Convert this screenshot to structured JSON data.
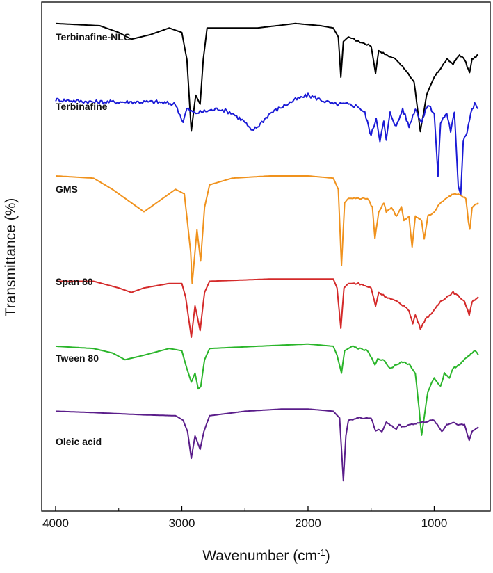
{
  "chart_data": {
    "type": "line",
    "title": "",
    "xlabel": "Wavenumber (cm",
    "xlabel_sup": "-1",
    "xlabel_close": ")",
    "ylabel": "Transmittance (%)",
    "xlim": [
      4000,
      650
    ],
    "x_reversed": true,
    "xticks": [
      4000,
      3000,
      2000,
      1000
    ],
    "xtick_labels": [
      "4000",
      "3000",
      "2000",
      "1000"
    ],
    "y_unit": "stacked transmittance spectra (arbitrary, offset)",
    "series": [
      {
        "name": "Terbinafine-NLC",
        "color": "#000000",
        "baseline": 95,
        "points": [
          [
            4000,
            96
          ],
          [
            3650,
            95.5
          ],
          [
            3500,
            94
          ],
          [
            3400,
            92.5
          ],
          [
            3250,
            93.5
          ],
          [
            3100,
            95
          ],
          [
            3000,
            94
          ],
          [
            2960,
            88
          ],
          [
            2925,
            72
          ],
          [
            2890,
            80
          ],
          [
            2855,
            78
          ],
          [
            2830,
            88
          ],
          [
            2800,
            95
          ],
          [
            2400,
            95
          ],
          [
            2100,
            96
          ],
          [
            1900,
            95.5
          ],
          [
            1800,
            95
          ],
          [
            1760,
            93
          ],
          [
            1740,
            84
          ],
          [
            1720,
            92
          ],
          [
            1680,
            93
          ],
          [
            1600,
            92
          ],
          [
            1500,
            91
          ],
          [
            1465,
            85
          ],
          [
            1440,
            90
          ],
          [
            1380,
            89
          ],
          [
            1300,
            88
          ],
          [
            1240,
            86
          ],
          [
            1160,
            83
          ],
          [
            1110,
            72
          ],
          [
            1060,
            80
          ],
          [
            1000,
            84
          ],
          [
            950,
            86
          ],
          [
            900,
            88
          ],
          [
            850,
            87
          ],
          [
            800,
            89
          ],
          [
            760,
            88
          ],
          [
            720,
            85
          ],
          [
            700,
            88
          ],
          [
            650,
            89
          ]
        ]
      },
      {
        "name": "Terbinafine",
        "color": "#1a1ad6",
        "baseline": 79,
        "points": [
          [
            4000,
            79
          ],
          [
            3700,
            78.5
          ],
          [
            3200,
            78.5
          ],
          [
            3050,
            78
          ],
          [
            2990,
            74
          ],
          [
            2960,
            77
          ],
          [
            2900,
            76
          ],
          [
            2700,
            77
          ],
          [
            2600,
            76
          ],
          [
            2500,
            74
          ],
          [
            2450,
            72
          ],
          [
            2400,
            73
          ],
          [
            2300,
            76
          ],
          [
            2100,
            79
          ],
          [
            2000,
            80
          ],
          [
            1900,
            79
          ],
          [
            1800,
            78
          ],
          [
            1700,
            78
          ],
          [
            1600,
            77.5
          ],
          [
            1550,
            76
          ],
          [
            1500,
            71
          ],
          [
            1460,
            75
          ],
          [
            1430,
            70
          ],
          [
            1400,
            74
          ],
          [
            1380,
            70
          ],
          [
            1350,
            76
          ],
          [
            1300,
            73
          ],
          [
            1250,
            77
          ],
          [
            1200,
            73
          ],
          [
            1150,
            77
          ],
          [
            1100,
            74
          ],
          [
            1050,
            78
          ],
          [
            1000,
            76
          ],
          [
            970,
            62
          ],
          [
            950,
            74
          ],
          [
            900,
            76
          ],
          [
            870,
            72
          ],
          [
            840,
            76
          ],
          [
            810,
            60
          ],
          [
            790,
            58
          ],
          [
            770,
            70
          ],
          [
            740,
            72
          ],
          [
            710,
            76
          ],
          [
            680,
            78
          ],
          [
            650,
            77
          ]
        ]
      },
      {
        "name": "GMS",
        "color": "#f0921d",
        "baseline": 62,
        "points": [
          [
            4000,
            62
          ],
          [
            3700,
            61.5
          ],
          [
            3550,
            59
          ],
          [
            3400,
            56
          ],
          [
            3300,
            54
          ],
          [
            3200,
            56
          ],
          [
            3050,
            59
          ],
          [
            2980,
            58
          ],
          [
            2930,
            45
          ],
          [
            2918,
            38
          ],
          [
            2880,
            50
          ],
          [
            2851,
            43
          ],
          [
            2820,
            55
          ],
          [
            2780,
            60
          ],
          [
            2600,
            61.5
          ],
          [
            2300,
            62
          ],
          [
            2000,
            62
          ],
          [
            1800,
            61.5
          ],
          [
            1760,
            59
          ],
          [
            1735,
            42
          ],
          [
            1710,
            56
          ],
          [
            1680,
            57
          ],
          [
            1600,
            57
          ],
          [
            1530,
            57
          ],
          [
            1490,
            55
          ],
          [
            1470,
            48
          ],
          [
            1440,
            54
          ],
          [
            1400,
            56
          ],
          [
            1380,
            54
          ],
          [
            1340,
            55
          ],
          [
            1300,
            53
          ],
          [
            1260,
            55
          ],
          [
            1240,
            52
          ],
          [
            1200,
            53
          ],
          [
            1175,
            46
          ],
          [
            1150,
            53
          ],
          [
            1100,
            52
          ],
          [
            1080,
            48
          ],
          [
            1050,
            53
          ],
          [
            1000,
            54
          ],
          [
            950,
            56
          ],
          [
            900,
            57
          ],
          [
            850,
            58
          ],
          [
            800,
            58
          ],
          [
            750,
            57
          ],
          [
            730,
            52
          ],
          [
            718,
            50
          ],
          [
            700,
            55
          ],
          [
            650,
            56
          ]
        ]
      },
      {
        "name": "Span 80",
        "color": "#d42a2a",
        "baseline": 38.5,
        "points": [
          [
            4000,
            38.5
          ],
          [
            3700,
            38.5
          ],
          [
            3500,
            37
          ],
          [
            3400,
            36
          ],
          [
            3300,
            37
          ],
          [
            3100,
            38
          ],
          [
            3000,
            38
          ],
          [
            2970,
            35
          ],
          [
            2925,
            26
          ],
          [
            2895,
            33
          ],
          [
            2855,
            27.5
          ],
          [
            2820,
            36
          ],
          [
            2780,
            38.5
          ],
          [
            2300,
            39
          ],
          [
            2000,
            39
          ],
          [
            1800,
            39
          ],
          [
            1770,
            37
          ],
          [
            1740,
            28
          ],
          [
            1715,
            37
          ],
          [
            1680,
            38
          ],
          [
            1600,
            38
          ],
          [
            1500,
            37
          ],
          [
            1465,
            33
          ],
          [
            1440,
            36
          ],
          [
            1380,
            35
          ],
          [
            1300,
            34
          ],
          [
            1240,
            33
          ],
          [
            1200,
            32
          ],
          [
            1170,
            29
          ],
          [
            1150,
            31
          ],
          [
            1110,
            28
          ],
          [
            1070,
            30
          ],
          [
            1000,
            32
          ],
          [
            950,
            34
          ],
          [
            900,
            35
          ],
          [
            850,
            36
          ],
          [
            800,
            35
          ],
          [
            760,
            34
          ],
          [
            723,
            31
          ],
          [
            700,
            34
          ],
          [
            650,
            35
          ]
        ]
      },
      {
        "name": "Tween 80",
        "color": "#2ab52a",
        "baseline": 24,
        "points": [
          [
            4000,
            24
          ],
          [
            3700,
            23.5
          ],
          [
            3550,
            22.5
          ],
          [
            3450,
            21
          ],
          [
            3300,
            22
          ],
          [
            3100,
            23.5
          ],
          [
            3000,
            23
          ],
          [
            2960,
            19
          ],
          [
            2925,
            16
          ],
          [
            2895,
            18
          ],
          [
            2870,
            14.5
          ],
          [
            2850,
            15
          ],
          [
            2820,
            21
          ],
          [
            2780,
            23.5
          ],
          [
            2400,
            24
          ],
          [
            2000,
            24.5
          ],
          [
            1800,
            24
          ],
          [
            1770,
            22
          ],
          [
            1735,
            18
          ],
          [
            1710,
            23
          ],
          [
            1650,
            24
          ],
          [
            1600,
            23.5
          ],
          [
            1530,
            23
          ],
          [
            1470,
            20
          ],
          [
            1450,
            21
          ],
          [
            1400,
            21
          ],
          [
            1350,
            19
          ],
          [
            1300,
            20
          ],
          [
            1250,
            20.5
          ],
          [
            1200,
            20
          ],
          [
            1150,
            18
          ],
          [
            1120,
            10
          ],
          [
            1100,
            4
          ],
          [
            1080,
            8
          ],
          [
            1050,
            14
          ],
          [
            1000,
            17
          ],
          [
            950,
            15
          ],
          [
            920,
            18
          ],
          [
            880,
            17
          ],
          [
            850,
            19
          ],
          [
            800,
            20
          ],
          [
            760,
            21
          ],
          [
            720,
            22
          ],
          [
            680,
            23
          ],
          [
            650,
            22
          ]
        ]
      },
      {
        "name": "Oleic acid",
        "color": "#5a1d8a",
        "baseline": 9.5,
        "points": [
          [
            4000,
            9.5
          ],
          [
            3700,
            9.2
          ],
          [
            3300,
            8.7
          ],
          [
            3050,
            8.5
          ],
          [
            2990,
            7.5
          ],
          [
            2955,
            5
          ],
          [
            2925,
            -1
          ],
          [
            2895,
            4
          ],
          [
            2855,
            1
          ],
          [
            2825,
            5
          ],
          [
            2780,
            8.5
          ],
          [
            2500,
            9.5
          ],
          [
            2200,
            10
          ],
          [
            2000,
            10
          ],
          [
            1800,
            9.5
          ],
          [
            1750,
            8
          ],
          [
            1720,
            -6
          ],
          [
            1700,
            4
          ],
          [
            1680,
            7.5
          ],
          [
            1600,
            8
          ],
          [
            1500,
            8
          ],
          [
            1465,
            5
          ],
          [
            1440,
            5.5
          ],
          [
            1415,
            5
          ],
          [
            1380,
            7
          ],
          [
            1300,
            5.5
          ],
          [
            1280,
            6.5
          ],
          [
            1250,
            6
          ],
          [
            1200,
            6.5
          ],
          [
            1100,
            7
          ],
          [
            1000,
            7.5
          ],
          [
            940,
            5
          ],
          [
            900,
            6.5
          ],
          [
            850,
            7
          ],
          [
            800,
            6.5
          ],
          [
            760,
            6.5
          ],
          [
            723,
            3
          ],
          [
            700,
            5
          ],
          [
            650,
            6
          ]
        ]
      }
    ]
  }
}
